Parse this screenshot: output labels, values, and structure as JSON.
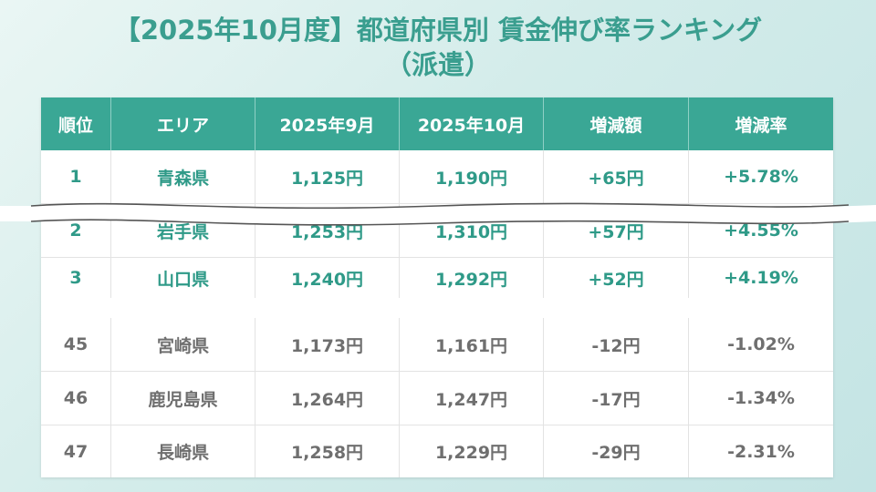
{
  "title_line1": "【2025年10月度】都道府県別 賃金伸び率ランキング",
  "title_line2": "（派遣）",
  "headers": [
    "順位",
    "エリア",
    "2025年9月",
    "2025年10月",
    "増減額",
    "増減率"
  ],
  "top_rows": [
    [
      "1",
      "青森県",
      "1,125円",
      "1,190円",
      "+65円",
      "+5.78%"
    ],
    [
      "2",
      "岩手県",
      "1,253円",
      "1,310円",
      "+57円",
      "+4.55%"
    ],
    [
      "3",
      "山口県",
      "1,240円",
      "1,292円",
      "+52円",
      "+4.19%"
    ]
  ],
  "bottom_rows": [
    [
      "45",
      "宮崎県",
      "1,173円",
      "1,161円",
      "-12円",
      "-1.02%"
    ],
    [
      "46",
      "鹿児島県",
      "1,264円",
      "1,247円",
      "-17円",
      "-1.34%"
    ],
    [
      "47",
      "長崎県",
      "1,258円",
      "1,229円",
      "-29円",
      "-2.31%"
    ]
  ],
  "colors": {
    "accent": "#3aa795",
    "title": "#3a9e8f",
    "top_text": "#2f9a88",
    "bottom_text": "#6f6f6f"
  }
}
